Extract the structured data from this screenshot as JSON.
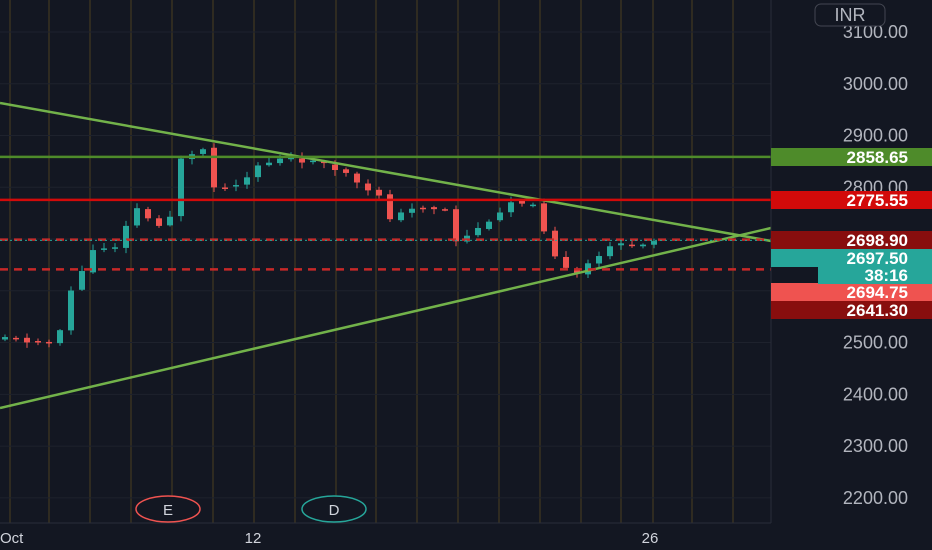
{
  "currency": "INR",
  "chart_data": {
    "type": "candlestick",
    "ylim": [
      2150,
      3150
    ],
    "y_ticks": [
      "3100.00",
      "3000.00",
      "2900.00",
      "2800.00",
      "2700.00",
      "2600.00",
      "2500.00",
      "2400.00",
      "2300.00",
      "2200.00"
    ],
    "x_ticks": [
      "Oct",
      "12",
      "26"
    ],
    "countdown": "38:16",
    "events": [
      "E",
      "D"
    ],
    "price_tags": [
      {
        "label": "2858.65",
        "value": 2858.65,
        "bg": "#4e8b2a",
        "fg": "#ffffff",
        "kind": "hline"
      },
      {
        "label": "2775.55",
        "value": 2775.55,
        "bg": "#d20a0a",
        "fg": "#ffffff",
        "kind": "hline"
      },
      {
        "label": "2698.90",
        "value": 2698.9,
        "bg": "#880e0e",
        "fg": "#ffffff",
        "kind": "dashed"
      },
      {
        "label": "2697.50",
        "value": 2697.5,
        "bg": "#26a69a",
        "fg": "#ffffff",
        "kind": "last"
      },
      {
        "label": "2694.75",
        "value": 2694.75,
        "bg": "#ef5350",
        "fg": "#ffffff",
        "kind": "tag"
      },
      {
        "label": "2641.30",
        "value": 2641.3,
        "bg": "#880e0e",
        "fg": "#ffffff",
        "kind": "dashed"
      }
    ],
    "trendlines": [
      {
        "from": [
          0,
          2960
        ],
        "to": [
          49,
          2622
        ]
      },
      {
        "from": [
          0,
          2375
        ],
        "to": [
          49,
          2632
        ]
      }
    ],
    "colors": {
      "up": "#26a69a",
      "down": "#ef5350",
      "trend": "#72b24a"
    }
  }
}
